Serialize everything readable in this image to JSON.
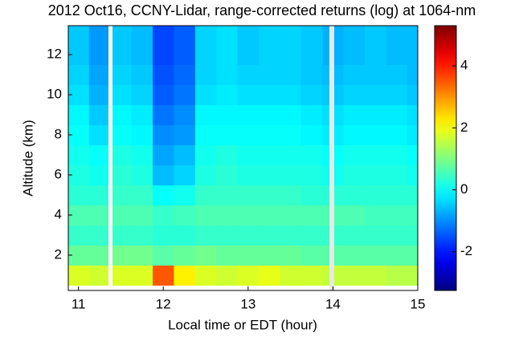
{
  "chart_data": {
    "type": "heatmap",
    "title": "2012 Oct16, CCNY-Lidar, range-corrected returns (log) at 1064-nm",
    "xlabel": "Local time or EDT (hour)",
    "ylabel": "Altitude (km)",
    "x": [
      11.0,
      11.25,
      11.5,
      11.75,
      12.0,
      12.25,
      12.5,
      12.75,
      13.0,
      13.25,
      13.5,
      13.75,
      14.0,
      14.25,
      14.5,
      14.75,
      15.0
    ],
    "y": [
      1,
      2,
      3,
      4,
      5,
      6,
      7,
      8,
      9,
      10,
      11,
      12,
      13
    ],
    "z": [
      [
        1.8,
        1.7,
        1.8,
        1.8,
        3.5,
        2.2,
        1.8,
        1.7,
        1.8,
        1.9,
        1.7,
        1.7,
        1.6,
        1.6,
        1.6,
        1.5,
        1.5
      ],
      [
        0.8,
        0.8,
        0.9,
        0.9,
        0.7,
        0.8,
        0.9,
        0.8,
        0.8,
        0.8,
        0.8,
        0.7,
        0.7,
        0.7,
        0.7,
        0.7,
        0.7
      ],
      [
        0.4,
        0.4,
        0.4,
        0.4,
        0.3,
        0.3,
        0.4,
        0.4,
        0.4,
        0.4,
        0.4,
        0.4,
        0.4,
        0.4,
        0.4,
        0.4,
        0.4
      ],
      [
        0.6,
        0.6,
        0.6,
        0.6,
        0.4,
        0.5,
        0.6,
        0.6,
        0.6,
        0.6,
        0.6,
        0.6,
        0.6,
        0.6,
        0.5,
        0.5,
        0.5
      ],
      [
        0.3,
        0.3,
        0.4,
        0.4,
        0.0,
        0.1,
        0.4,
        0.4,
        0.4,
        0.4,
        0.4,
        0.3,
        0.3,
        0.3,
        0.3,
        0.3,
        0.3
      ],
      [
        0.2,
        0.1,
        0.3,
        0.2,
        -0.6,
        -0.4,
        0.2,
        0.3,
        0.2,
        0.2,
        0.2,
        0.2,
        0.1,
        0.2,
        0.2,
        0.2,
        0.1
      ],
      [
        0.1,
        0.0,
        0.2,
        0.1,
        -0.8,
        -0.6,
        0.1,
        0.2,
        0.1,
        0.1,
        0.1,
        0.1,
        0.0,
        0.1,
        0.1,
        0.1,
        0.0
      ],
      [
        0.0,
        -0.3,
        0.0,
        -0.1,
        -1.0,
        -0.9,
        0.0,
        0.0,
        0.0,
        0.0,
        0.0,
        -0.1,
        -0.2,
        -0.1,
        -0.1,
        -0.1,
        -0.2
      ],
      [
        -0.1,
        -0.5,
        -0.1,
        -0.2,
        -1.2,
        -1.0,
        -0.1,
        -0.1,
        -0.1,
        -0.1,
        -0.1,
        -0.2,
        -0.3,
        -0.2,
        -0.2,
        -0.2,
        -0.3
      ],
      [
        -0.3,
        -0.7,
        -0.3,
        -0.4,
        -1.4,
        -1.2,
        -0.3,
        -0.2,
        -0.3,
        -0.3,
        -0.3,
        -0.4,
        -0.5,
        -0.4,
        -0.4,
        -0.4,
        -0.5
      ],
      [
        -0.4,
        -0.8,
        -0.4,
        -0.5,
        -1.5,
        -1.3,
        -0.4,
        -0.3,
        -0.4,
        -0.4,
        -0.4,
        -0.5,
        -0.6,
        -0.5,
        -0.5,
        -0.5,
        -0.6
      ],
      [
        -0.5,
        -0.9,
        -0.5,
        -0.6,
        -1.6,
        -1.4,
        -0.4,
        -0.3,
        -0.5,
        -0.4,
        -0.4,
        -0.5,
        -0.7,
        -0.6,
        -0.5,
        -0.6,
        -0.6
      ],
      [
        -0.5,
        -0.9,
        -0.5,
        -0.6,
        -1.6,
        -1.4,
        -0.4,
        -0.3,
        -0.5,
        -0.4,
        -0.4,
        -0.5,
        -0.7,
        -0.6,
        -0.5,
        -0.6,
        -0.6
      ]
    ],
    "xlim": [
      10.88,
      15
    ],
    "xticks": [
      11,
      12,
      13,
      14,
      15
    ],
    "ylim": [
      0.24,
      13.44
    ],
    "yticks": [
      2,
      4,
      6,
      8,
      10,
      12
    ],
    "clim": [
      -3.25,
      5.3
    ],
    "cticks": [
      -2,
      0,
      2,
      4
    ],
    "colormap": "jet"
  }
}
